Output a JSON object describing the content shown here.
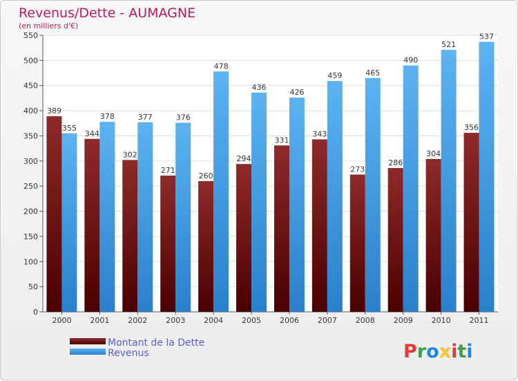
{
  "chart_data": {
    "type": "bar",
    "title": "Revenus/Dette - AUMAGNE",
    "subtitle": "(en milliers d'€)",
    "categories": [
      "2000",
      "2001",
      "2002",
      "2003",
      "2004",
      "2005",
      "2006",
      "2007",
      "2008",
      "2009",
      "2010",
      "2011"
    ],
    "series": [
      {
        "name": "Montant de la Dette",
        "values": [
          389,
          344,
          302,
          271,
          260,
          294,
          331,
          343,
          273,
          286,
          304,
          356
        ],
        "color": "#7a1a1a"
      },
      {
        "name": "Revenus",
        "values": [
          355,
          378,
          377,
          376,
          478,
          436,
          426,
          459,
          465,
          490,
          521,
          537
        ],
        "color": "#4aa3e6"
      }
    ],
    "yticks": [
      0,
      50,
      100,
      150,
      200,
      250,
      300,
      350,
      400,
      450,
      500,
      550
    ],
    "ylim": [
      0,
      550
    ],
    "grid": true,
    "legend_position": "bottom-left"
  },
  "logo": {
    "letters": [
      "P",
      "r",
      "o",
      "x",
      "i",
      "t",
      "i"
    ],
    "colors": [
      "#e53935",
      "#43a047",
      "#1e88e5",
      "#fbc02d",
      "#e53935",
      "#43a047",
      "#1e88e5"
    ]
  }
}
